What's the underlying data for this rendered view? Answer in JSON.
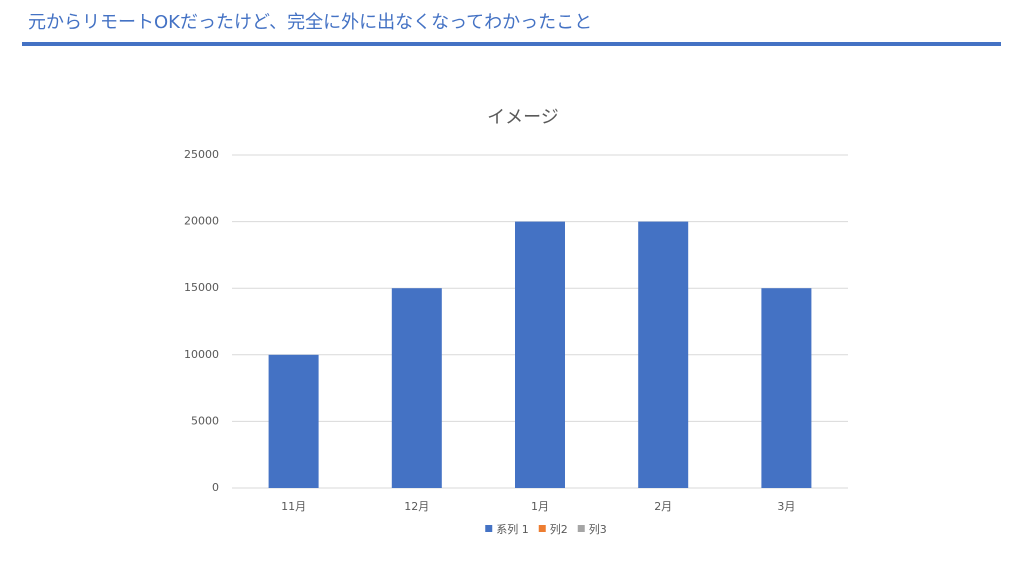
{
  "header": {
    "title": "元からリモートOKだったけど、完全に外に出なくなってわかったこと"
  },
  "chart_data": {
    "type": "bar",
    "title": "イメージ",
    "categories": [
      "11月",
      "12月",
      "1月",
      "2月",
      "3月"
    ],
    "series": [
      {
        "name": "系列 1",
        "color": "#4472c4",
        "values": [
          10000,
          15000,
          20000,
          20000,
          15000
        ]
      },
      {
        "name": "列2",
        "color": "#ed7d31",
        "values": [
          null,
          null,
          null,
          null,
          null
        ]
      },
      {
        "name": "列3",
        "color": "#a5a5a5",
        "values": [
          null,
          null,
          null,
          null,
          null
        ]
      }
    ],
    "ylim": [
      0,
      25000
    ],
    "yticks": [
      0,
      5000,
      10000,
      15000,
      20000,
      25000
    ],
    "grid": true,
    "legend": "bottom"
  }
}
